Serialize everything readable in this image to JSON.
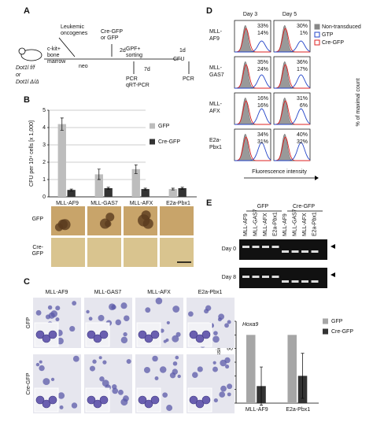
{
  "panel_labels": [
    "A",
    "B",
    "C",
    "D",
    "E",
    "F"
  ],
  "panel_a": {
    "mouse_label": [
      "Dot1l f/f",
      "or",
      "Dot1l Δ/Δ"
    ],
    "oncogenes": [
      "Leukemic",
      "oncogenes"
    ],
    "transduction": [
      "Cre-GFP",
      "or GFP"
    ],
    "marrow": [
      "c-kit+",
      "bone",
      "marrow"
    ],
    "neo": "neo",
    "step_2d": "2d",
    "sorting": [
      "GPF+",
      "sorting"
    ],
    "step_7d": "7d",
    "cfu": "CFU",
    "step_1d": "1d",
    "pcr_1": [
      "PCR",
      "qRT-PCR"
    ],
    "pcr_2": "PCR"
  },
  "chart_data": [
    {
      "type": "bar",
      "ylabel": "CFU per 10⁴ cells [x 1,000]",
      "categories": [
        "MLL-AF9",
        "MLL-GAS7",
        "MLL-AFX",
        "E2a-Pbx1"
      ],
      "series": [
        {
          "name": "GFP",
          "color": "#bdbdbd",
          "values": [
            4.2,
            1.3,
            1.6,
            0.45
          ],
          "errors": [
            0.35,
            0.3,
            0.25,
            0.05
          ]
        },
        {
          "name": "Cre-GFP",
          "color": "#333333",
          "values": [
            0.4,
            0.5,
            0.45,
            0.5
          ],
          "errors": [
            0.05,
            0.05,
            0.05,
            0.05
          ]
        }
      ],
      "ylim": [
        0,
        5
      ],
      "yticks": [
        0,
        1,
        2,
        3,
        4,
        5
      ],
      "grid": true
    },
    {
      "type": "bar",
      "annotation": "Hoxa9",
      "ylabel": "Relative expression [%]",
      "categories": [
        "MLL-AF9",
        "E2a-Pbx1"
      ],
      "series": [
        {
          "name": "GFP",
          "color": "#a6a6a6",
          "values": [
            100,
            100
          ]
        },
        {
          "name": "Cre-GFP",
          "color": "#333333",
          "values": [
            25,
            40
          ],
          "errors": [
            28,
            33
          ]
        }
      ],
      "ylim": [
        0,
        120
      ],
      "yticks": [
        0,
        20,
        40,
        60,
        80,
        100,
        120
      ],
      "grid": false
    }
  ],
  "panel_b_images": {
    "row_labels": [
      [
        "GFP"
      ],
      [
        "Cre-",
        "GFP"
      ]
    ]
  },
  "panel_c": {
    "columns": [
      "MLL-AF9",
      "MLL-GAS7",
      "MLL-AFX",
      "E2a-Pbx1"
    ],
    "row_labels": [
      "GFP",
      "Cre-GFP"
    ]
  },
  "panel_d": {
    "days": [
      "Day 3",
      "Day 5"
    ],
    "legend": [
      "Non-transduced",
      "GTP",
      "Cre-GFP"
    ],
    "rows": [
      {
        "label": [
          "MLL-",
          "AF9"
        ],
        "day3": [
          "33%",
          "14%"
        ],
        "day5": [
          "30%",
          "1%"
        ]
      },
      {
        "label": [
          "MLL-",
          "GAS7"
        ],
        "day3": [
          "35%",
          "24%"
        ],
        "day5": [
          "36%",
          "17%"
        ]
      },
      {
        "label": [
          "MLL-",
          "AFX"
        ],
        "day3": [
          "16%",
          "16%"
        ],
        "day5": [
          "31%",
          "6%"
        ]
      },
      {
        "label": [
          "E2a-",
          "Pbx1"
        ],
        "day3": [
          "34%",
          "31%"
        ],
        "day5": [
          "40%",
          "32%"
        ]
      }
    ],
    "xlabel": "Fluorescence intensity",
    "ylabel": "% of maximal count"
  },
  "panel_e": {
    "groups": [
      "GFP",
      "Cre-GFP"
    ],
    "lanes": [
      "MLL-AF9",
      "MLL-GAS7",
      "MLL-AFX",
      "E2a-Pbx1",
      "MLL-AF9",
      "MLL-GAS7",
      "MLL-AFX",
      "E2a-Pbx1"
    ],
    "rows": [
      "Day 0",
      "Day 8"
    ]
  }
}
